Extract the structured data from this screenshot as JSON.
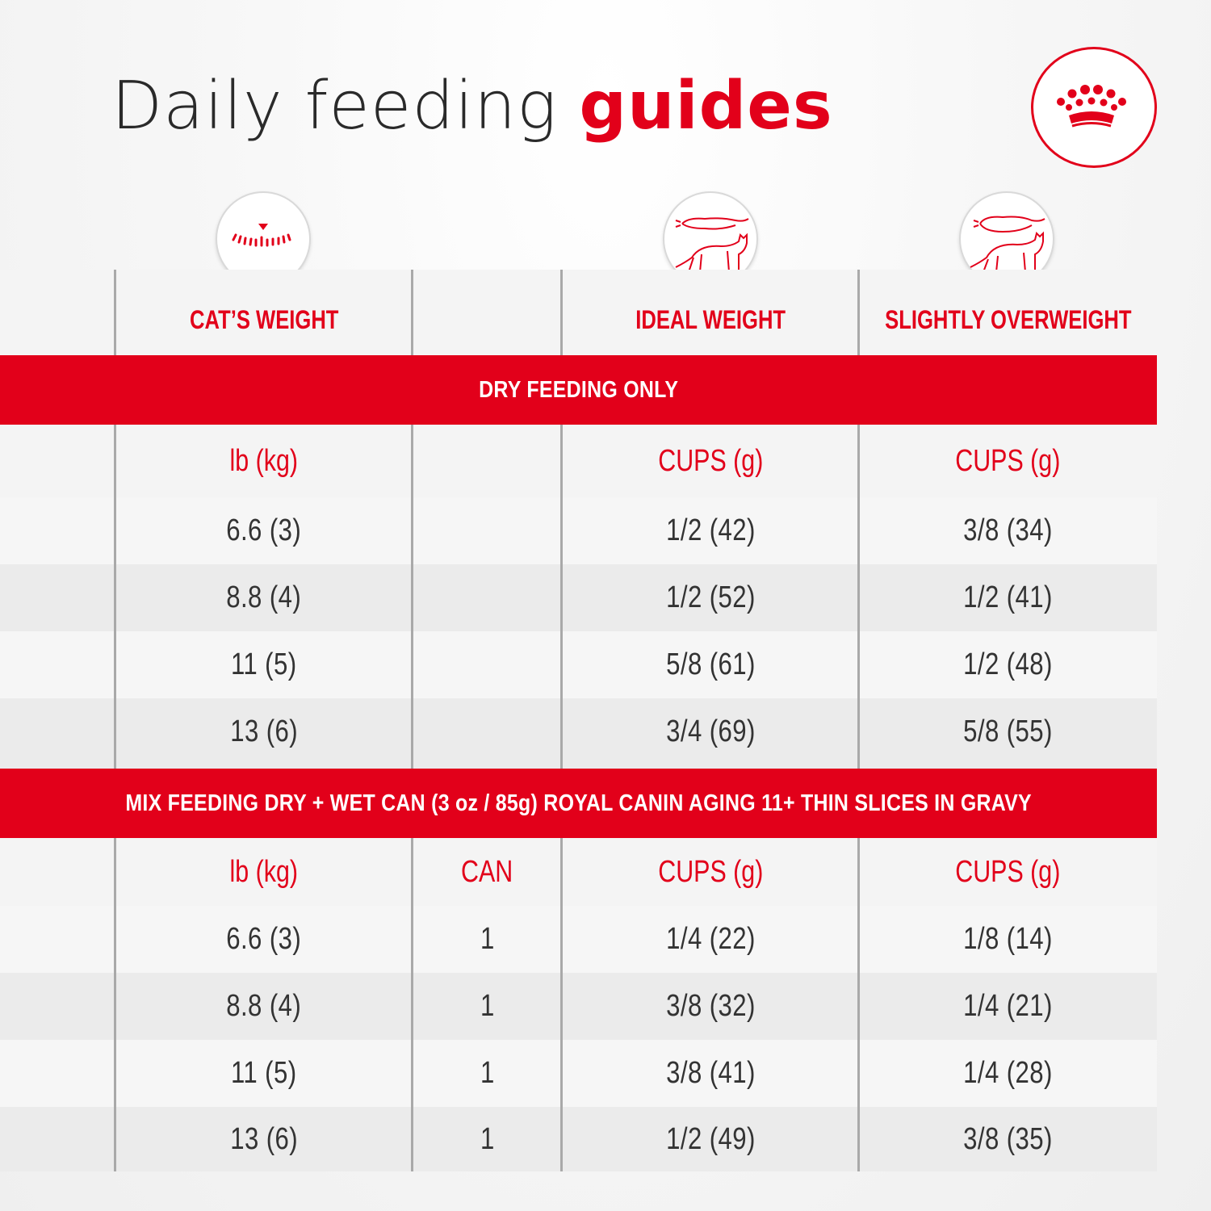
{
  "title": {
    "light": "Daily feeding",
    "bold": "guides"
  },
  "brand_color": "#e2001a",
  "icons": {
    "weight": "scale-icon",
    "ideal": "ideal-weight-cat-icon",
    "overweight": "overweight-cat-icon",
    "logo": "crown-logo-icon"
  },
  "column_headers": [
    "CAT’S WEIGHT",
    "IDEAL WEIGHT",
    "SLIGHTLY OVERWEIGHT"
  ],
  "dry": {
    "band": "DRY FEEDING ONLY",
    "units": [
      "lb (kg)",
      "",
      "CUPS (g)",
      "CUPS (g)"
    ],
    "rows": [
      [
        "6.6 (3)",
        "",
        "1/2 (42)",
        "3/8 (34)"
      ],
      [
        "8.8 (4)",
        "",
        "1/2 (52)",
        "1/2 (41)"
      ],
      [
        "11 (5)",
        "",
        "5/8 (61)",
        "1/2 (48)"
      ],
      [
        "13 (6)",
        "",
        "3/4 (69)",
        "5/8 (55)"
      ]
    ]
  },
  "mix": {
    "band": "MIX FEEDING DRY + WET CAN (3 oz / 85g) ROYAL CANIN AGING 11+ THIN SLICES IN GRAVY",
    "units": [
      "lb (kg)",
      "CAN",
      "CUPS (g)",
      "CUPS (g)"
    ],
    "rows": [
      [
        "6.6 (3)",
        "1",
        "1/4 (22)",
        "1/8 (14)"
      ],
      [
        "8.8 (4)",
        "1",
        "3/8 (32)",
        "1/4 (21)"
      ],
      [
        "11 (5)",
        "1",
        "3/8 (41)",
        "1/4 (28)"
      ],
      [
        "13 (6)",
        "1",
        "1/2 (49)",
        "3/8 (35)"
      ]
    ]
  }
}
